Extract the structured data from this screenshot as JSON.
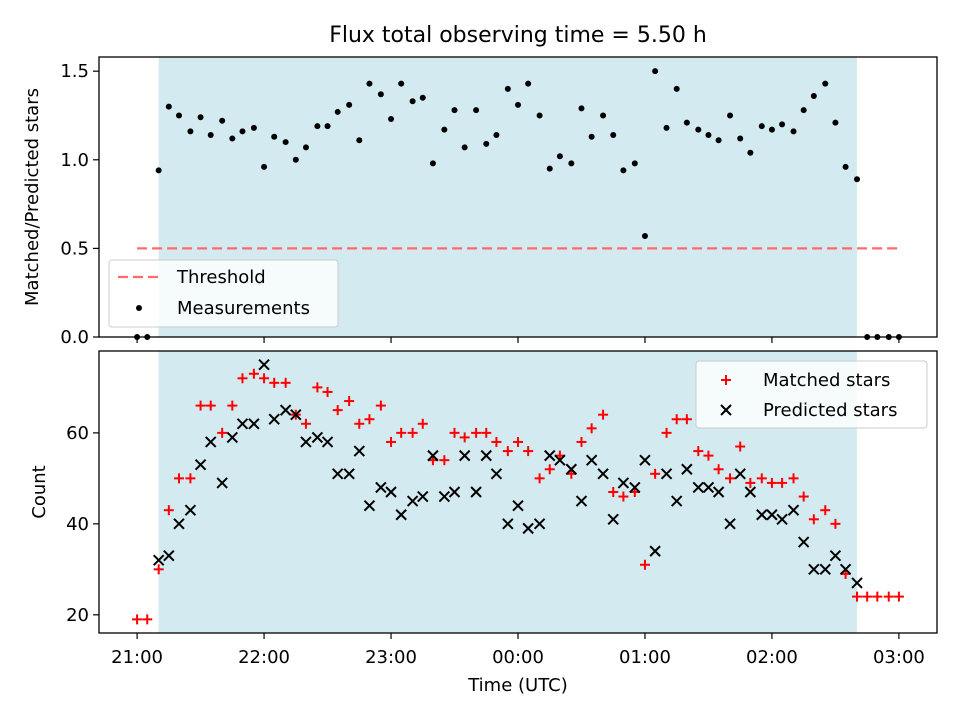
{
  "figure": {
    "title": "Flux total observing time = 5.50 h",
    "xlabel": "Time (UTC)",
    "x_ticks": [
      "21:00",
      "22:00",
      "23:00",
      "00:00",
      "01:00",
      "02:00",
      "03:00"
    ]
  },
  "colors": {
    "span": "#d3eaf0",
    "threshold": "#ff6b6b",
    "measurements": "#000000",
    "matched": "#ff0000",
    "predicted": "#000000"
  },
  "chart_data": [
    {
      "type": "scatter",
      "ylabel": "Matched/Predicted stars",
      "ylim": [
        0,
        1.58
      ],
      "y_ticks": [
        0.0,
        0.5,
        1.0,
        1.5
      ],
      "x_unit": "hours since 21:00 UTC",
      "xlim": [
        -0.3,
        6.3
      ],
      "span": [
        0.17,
        5.67
      ],
      "threshold": {
        "name": "Threshold",
        "y": 0.5,
        "x_range": [
          0,
          6
        ],
        "style": "dashed"
      },
      "legend_position": "lower-left",
      "series": [
        {
          "name": "Measurements",
          "marker": "dot",
          "x": [
            0.0,
            0.08,
            0.17,
            0.25,
            0.33,
            0.42,
            0.5,
            0.58,
            0.67,
            0.75,
            0.83,
            0.92,
            1.0,
            1.08,
            1.17,
            1.25,
            1.33,
            1.42,
            1.5,
            1.58,
            1.67,
            1.75,
            1.83,
            1.92,
            2.0,
            2.08,
            2.17,
            2.25,
            2.33,
            2.42,
            2.5,
            2.58,
            2.67,
            2.75,
            2.83,
            2.92,
            3.0,
            3.08,
            3.17,
            3.25,
            3.33,
            3.42,
            3.5,
            3.58,
            3.67,
            3.75,
            3.83,
            3.92,
            4.0,
            4.08,
            4.17,
            4.25,
            4.33,
            4.42,
            4.5,
            4.58,
            4.67,
            4.75,
            4.83,
            4.92,
            5.0,
            5.08,
            5.17,
            5.25,
            5.33,
            5.42,
            5.5,
            5.58,
            5.67,
            5.75,
            5.83,
            5.92,
            6.0
          ],
          "y": [
            0.0,
            0.0,
            0.94,
            1.3,
            1.25,
            1.16,
            1.24,
            1.14,
            1.22,
            1.12,
            1.16,
            1.18,
            0.96,
            1.13,
            1.1,
            1.0,
            1.07,
            1.19,
            1.19,
            1.27,
            1.31,
            1.11,
            1.43,
            1.37,
            1.23,
            1.43,
            1.33,
            1.35,
            0.98,
            1.17,
            1.28,
            1.07,
            1.28,
            1.09,
            1.14,
            1.4,
            1.31,
            1.43,
            1.25,
            0.95,
            1.02,
            0.98,
            1.29,
            1.13,
            1.25,
            1.14,
            0.94,
            0.98,
            0.57,
            1.5,
            1.18,
            1.4,
            1.21,
            1.17,
            1.14,
            1.11,
            1.25,
            1.12,
            1.04,
            1.19,
            1.17,
            1.2,
            1.16,
            1.28,
            1.36,
            1.43,
            1.21,
            0.96,
            0.89,
            0.0,
            0.0,
            0.0,
            0.0
          ]
        }
      ]
    },
    {
      "type": "scatter",
      "ylabel": "Count",
      "ylim": [
        16,
        78
      ],
      "y_ticks": [
        20,
        40,
        60
      ],
      "x_unit": "hours since 21:00 UTC",
      "xlim": [
        -0.3,
        6.3
      ],
      "span": [
        0.17,
        5.67
      ],
      "legend_position": "top-right",
      "series": [
        {
          "name": "Matched stars",
          "marker": "plus",
          "x": [
            0.0,
            0.08,
            0.17,
            0.25,
            0.33,
            0.42,
            0.5,
            0.58,
            0.67,
            0.75,
            0.83,
            0.92,
            1.0,
            1.08,
            1.17,
            1.25,
            1.33,
            1.42,
            1.5,
            1.58,
            1.67,
            1.75,
            1.83,
            1.92,
            2.0,
            2.08,
            2.17,
            2.25,
            2.33,
            2.42,
            2.5,
            2.58,
            2.67,
            2.75,
            2.83,
            2.92,
            3.0,
            3.08,
            3.17,
            3.25,
            3.33,
            3.42,
            3.5,
            3.58,
            3.67,
            3.75,
            3.83,
            3.92,
            4.0,
            4.08,
            4.17,
            4.25,
            4.33,
            4.42,
            4.5,
            4.58,
            4.67,
            4.75,
            4.83,
            4.92,
            5.0,
            5.08,
            5.17,
            5.25,
            5.33,
            5.42,
            5.5,
            5.58,
            5.67,
            5.75,
            5.83,
            5.92,
            6.0
          ],
          "y": [
            19,
            19,
            30,
            43,
            50,
            50,
            66,
            66,
            60,
            66,
            72,
            73,
            72,
            71,
            71,
            64,
            62,
            70,
            69,
            65,
            67,
            62,
            63,
            66,
            58,
            60,
            60,
            62,
            54,
            54,
            60,
            59,
            60,
            60,
            58,
            56,
            58,
            56,
            50,
            52,
            55,
            51,
            58,
            61,
            64,
            47,
            46,
            47,
            31,
            51,
            60,
            63,
            63,
            56,
            55,
            52,
            50,
            57,
            49,
            50,
            49,
            49,
            50,
            46,
            41,
            43,
            40,
            29,
            24,
            24,
            24,
            24,
            24
          ]
        },
        {
          "name": "Predicted stars",
          "marker": "x",
          "x": [
            0.17,
            0.25,
            0.33,
            0.42,
            0.5,
            0.58,
            0.67,
            0.75,
            0.83,
            0.92,
            1.0,
            1.08,
            1.17,
            1.25,
            1.33,
            1.42,
            1.5,
            1.58,
            1.67,
            1.75,
            1.83,
            1.92,
            2.0,
            2.08,
            2.17,
            2.25,
            2.33,
            2.42,
            2.5,
            2.58,
            2.67,
            2.75,
            2.83,
            2.92,
            3.0,
            3.08,
            3.17,
            3.25,
            3.33,
            3.42,
            3.5,
            3.58,
            3.67,
            3.75,
            3.83,
            3.92,
            4.0,
            4.08,
            4.17,
            4.25,
            4.33,
            4.42,
            4.5,
            4.58,
            4.67,
            4.75,
            4.83,
            4.92,
            5.0,
            5.08,
            5.17,
            5.25,
            5.33,
            5.42,
            5.5,
            5.58,
            5.67
          ],
          "y": [
            32,
            33,
            40,
            43,
            53,
            58,
            49,
            59,
            62,
            62,
            75,
            63,
            65,
            64,
            58,
            59,
            58,
            51,
            51,
            56,
            44,
            48,
            47,
            42,
            45,
            46,
            55,
            46,
            47,
            55,
            47,
            55,
            51,
            40,
            44,
            39,
            40,
            55,
            54,
            52,
            45,
            54,
            51,
            41,
            49,
            48,
            54,
            34,
            51,
            45,
            52,
            48,
            48,
            47,
            40,
            51,
            47,
            42,
            42,
            41,
            43,
            36,
            30,
            30,
            33,
            30,
            27
          ]
        }
      ]
    }
  ]
}
